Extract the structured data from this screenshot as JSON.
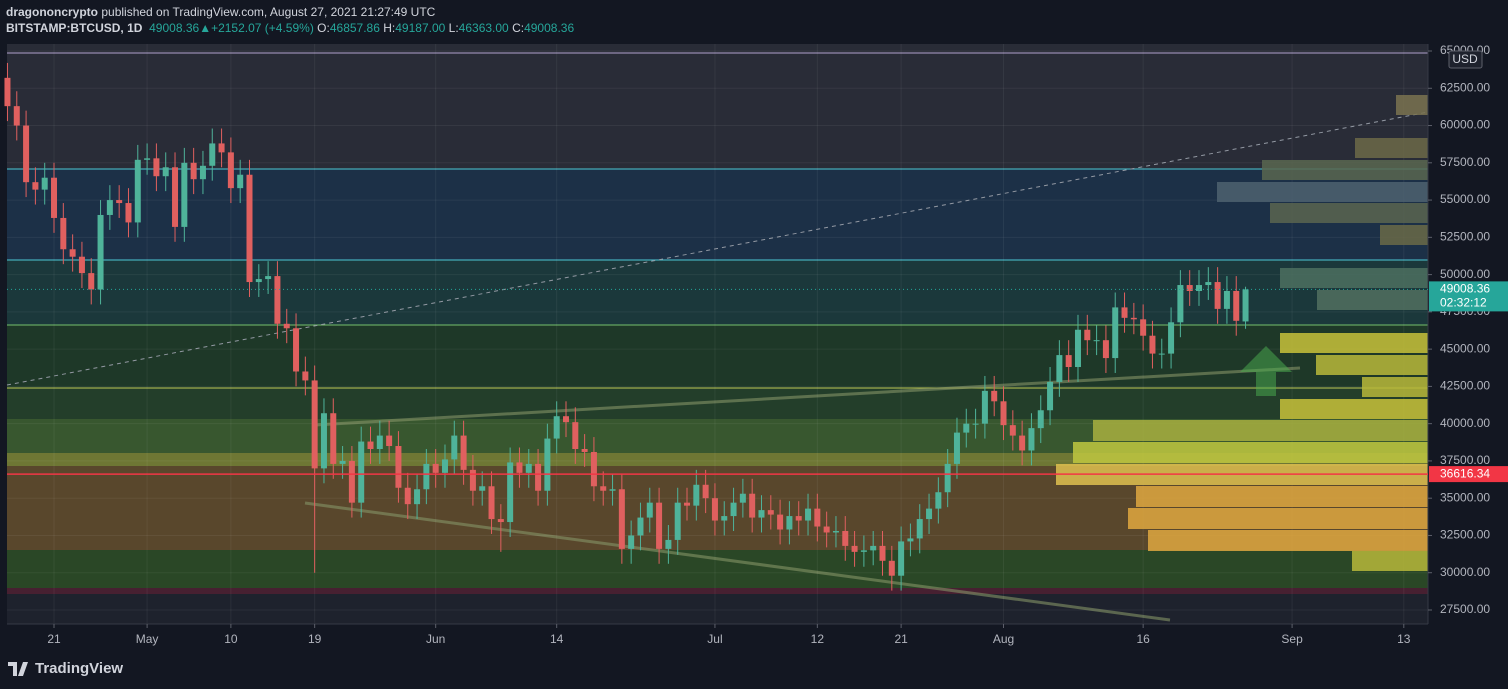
{
  "header": {
    "publisher": "dragononcrypto",
    "published": "published on TradingView.com, August 27, 2021 21:27:49 UTC",
    "symbol": "BITSTAMP:BTCUSD, 1D",
    "arrow": "▲",
    "change": "+2152.07 (+4.59%)",
    "o": "O:",
    "h": "H:",
    "l": "L:",
    "c": "C:",
    "high": "49187.00",
    "low": "46363.00"
  },
  "footer": {
    "brand": "TradingView"
  },
  "chart_data": {
    "type": "candlestick",
    "currency": "USD",
    "countdown": "02:32:12",
    "last_price": 49008.36,
    "level": 36616.34,
    "up_color": "#4fb39a",
    "down_color": "#e0605f",
    "grid": true,
    "ylim": [
      26560,
      65470
    ],
    "yticks": [
      {
        "value": 27500,
        "label": "27500.00"
      },
      {
        "value": 30000,
        "label": "30000.00"
      },
      {
        "value": 32500,
        "label": "32500.00"
      },
      {
        "value": 35000,
        "label": "35000.00"
      },
      {
        "value": 37500,
        "label": "37500.00"
      },
      {
        "value": 40000,
        "label": "40000.00"
      },
      {
        "value": 42500,
        "label": "42500.00"
      },
      {
        "value": 45000,
        "label": "45000.00"
      },
      {
        "value": 47500,
        "label": "47500.00"
      },
      {
        "value": 50000,
        "label": "50000.00"
      },
      {
        "value": 52500,
        "label": "52500.00"
      },
      {
        "value": 55000,
        "label": "55000.00"
      },
      {
        "value": 57500,
        "label": "57500.00"
      },
      {
        "value": 60000,
        "label": "60000.00"
      },
      {
        "value": 62500,
        "label": "62500.00"
      },
      {
        "value": 65000,
        "label": "65000.00"
      }
    ],
    "xlim": [
      -0.05,
      152.6
    ],
    "xticks": [
      {
        "value": 5,
        "label": "21"
      },
      {
        "value": 15,
        "label": "May"
      },
      {
        "value": 24,
        "label": "10"
      },
      {
        "value": 33,
        "label": "19"
      },
      {
        "value": 46,
        "label": "Jun"
      },
      {
        "value": 59,
        "label": "14"
      },
      {
        "value": 76,
        "label": "Jul"
      },
      {
        "value": 87,
        "label": "12"
      },
      {
        "value": 96,
        "label": "21"
      },
      {
        "value": 107,
        "label": "Aug"
      },
      {
        "value": 122,
        "label": "16"
      },
      {
        "value": 138,
        "label": "Sep"
      },
      {
        "value": 150,
        "label": "13"
      }
    ],
    "candles": {
      "open": [
        63200,
        61300,
        60000,
        56200,
        55700,
        56500,
        53800,
        51700,
        51200,
        50100,
        49000,
        54000,
        55000,
        54800,
        53500,
        57700,
        57800,
        56600,
        57200,
        53200,
        57500,
        56400,
        57300,
        58800,
        58200,
        55800,
        56700,
        49500,
        49700,
        49900,
        46700,
        46400,
        43500,
        42900,
        37000,
        40700,
        37300,
        37500,
        34700,
        38800,
        38300,
        39200,
        38500,
        35700,
        34600,
        35600,
        37300,
        36700,
        37600,
        39200,
        36900,
        35500,
        35800,
        33600,
        33400,
        37400,
        36700,
        37300,
        35500,
        39000,
        40500,
        40100,
        38300,
        38100,
        35800,
        35500,
        35600,
        31600,
        32500,
        33700,
        34700,
        31600,
        32200,
        34700,
        34500,
        35900,
        35000,
        33500,
        33800,
        34700,
        35300,
        33700,
        34200,
        33900,
        32900,
        33800,
        33500,
        34300,
        33100,
        32700,
        32800,
        31800,
        31400,
        31500,
        31800,
        30800,
        29800,
        32100,
        32300,
        33600,
        34300,
        35400,
        37300,
        39400,
        40000,
        40000,
        42200,
        41500,
        39900,
        39200,
        38200,
        39700,
        40900,
        42800,
        44600,
        43800,
        46300,
        45600,
        45600,
        44400,
        47800,
        47100,
        47000,
        45900,
        44700,
        44700,
        46800,
        49300,
        48900,
        49300,
        49500,
        47700,
        48900,
        46857.86
      ],
      "high": [
        64200,
        62300,
        61000,
        57200,
        57500,
        57500,
        54800,
        52700,
        52200,
        51100,
        55000,
        56000,
        56000,
        55800,
        58700,
        58800,
        58800,
        58200,
        58200,
        58500,
        58500,
        58300,
        59800,
        59800,
        59200,
        57700,
        57700,
        50700,
        50900,
        50900,
        47700,
        47400,
        44500,
        43900,
        41700,
        41700,
        38500,
        38500,
        39800,
        39800,
        40200,
        40200,
        39500,
        36700,
        36600,
        38300,
        38300,
        38600,
        40200,
        40200,
        37900,
        36800,
        36800,
        34600,
        38400,
        38400,
        38300,
        38300,
        40000,
        41500,
        41500,
        41100,
        39300,
        39100,
        36800,
        36600,
        36600,
        33500,
        34700,
        35700,
        35700,
        33200,
        35700,
        35700,
        36900,
        36900,
        36000,
        34800,
        35700,
        36300,
        36300,
        35200,
        35200,
        34900,
        34800,
        34800,
        35300,
        35300,
        34100,
        33800,
        33800,
        32800,
        32500,
        32800,
        32800,
        31800,
        33100,
        33300,
        34600,
        35300,
        36400,
        38300,
        40400,
        41000,
        41000,
        43200,
        43200,
        42500,
        40900,
        40200,
        40700,
        41900,
        43800,
        45600,
        45600,
        47300,
        47300,
        46600,
        46600,
        48800,
        48800,
        48100,
        48000,
        46900,
        45700,
        47800,
        50300,
        50300,
        50300,
        50500,
        50500,
        49900,
        49900,
        49187
      ],
      "low": [
        60300,
        59000,
        55200,
        54700,
        54700,
        52800,
        50700,
        50200,
        49100,
        48000,
        48000,
        53000,
        53800,
        52500,
        52500,
        56700,
        55600,
        55600,
        52200,
        52200,
        55400,
        55400,
        56300,
        57200,
        54800,
        54800,
        48500,
        48500,
        48700,
        45700,
        45400,
        42500,
        41900,
        30000,
        36000,
        36300,
        36300,
        33700,
        33700,
        37300,
        37300,
        37500,
        34700,
        33600,
        33600,
        34600,
        35700,
        35700,
        36600,
        35900,
        34500,
        34500,
        32600,
        31400,
        32400,
        35700,
        35700,
        34500,
        34500,
        38000,
        39100,
        37300,
        37100,
        34800,
        34500,
        34500,
        30600,
        30600,
        31500,
        32700,
        30600,
        30600,
        31200,
        33500,
        33500,
        34000,
        32500,
        32500,
        32800,
        33700,
        32700,
        32700,
        32900,
        31900,
        31900,
        32500,
        32500,
        32100,
        31700,
        31700,
        30800,
        30400,
        30400,
        30500,
        29800,
        28800,
        28800,
        31100,
        31300,
        32600,
        33300,
        34400,
        36300,
        38400,
        39000,
        39000,
        40500,
        38900,
        38200,
        37200,
        37200,
        38700,
        39900,
        41800,
        42800,
        42800,
        44600,
        44600,
        43400,
        43400,
        46100,
        46000,
        44900,
        43700,
        43700,
        43700,
        45800,
        47900,
        47900,
        48300,
        46700,
        46700,
        45900,
        46363
      ],
      "close": [
        61300,
        60000,
        56200,
        55700,
        56500,
        53800,
        51700,
        51200,
        50100,
        49000,
        54000,
        55000,
        54800,
        53500,
        57700,
        57800,
        56600,
        57200,
        53200,
        57500,
        56400,
        57300,
        58800,
        58200,
        55800,
        56700,
        49500,
        49700,
        49900,
        46700,
        46400,
        43500,
        42900,
        37000,
        40700,
        37300,
        37500,
        34700,
        38800,
        38300,
        39200,
        38500,
        35700,
        34600,
        35600,
        37300,
        36700,
        37600,
        39200,
        36900,
        35500,
        35800,
        33600,
        33400,
        37400,
        36700,
        37300,
        35500,
        39000,
        40500,
        40100,
        38300,
        38100,
        35800,
        35500,
        35600,
        31600,
        32500,
        33700,
        34700,
        31600,
        32200,
        34700,
        34500,
        35900,
        35000,
        33500,
        33800,
        34700,
        35300,
        33700,
        34200,
        33900,
        32900,
        33800,
        33500,
        34300,
        33100,
        32700,
        32800,
        31800,
        31400,
        31500,
        31800,
        30800,
        29800,
        32100,
        32300,
        33600,
        34300,
        35400,
        37300,
        39400,
        40000,
        40000,
        42200,
        41500,
        39900,
        39200,
        38200,
        39700,
        40900,
        42800,
        44600,
        43800,
        46300,
        45600,
        45600,
        44400,
        47800,
        47100,
        47000,
        45900,
        44700,
        44700,
        46800,
        49300,
        48900,
        49300,
        49500,
        47700,
        48900,
        46900,
        49008.36
      ]
    }
  }
}
